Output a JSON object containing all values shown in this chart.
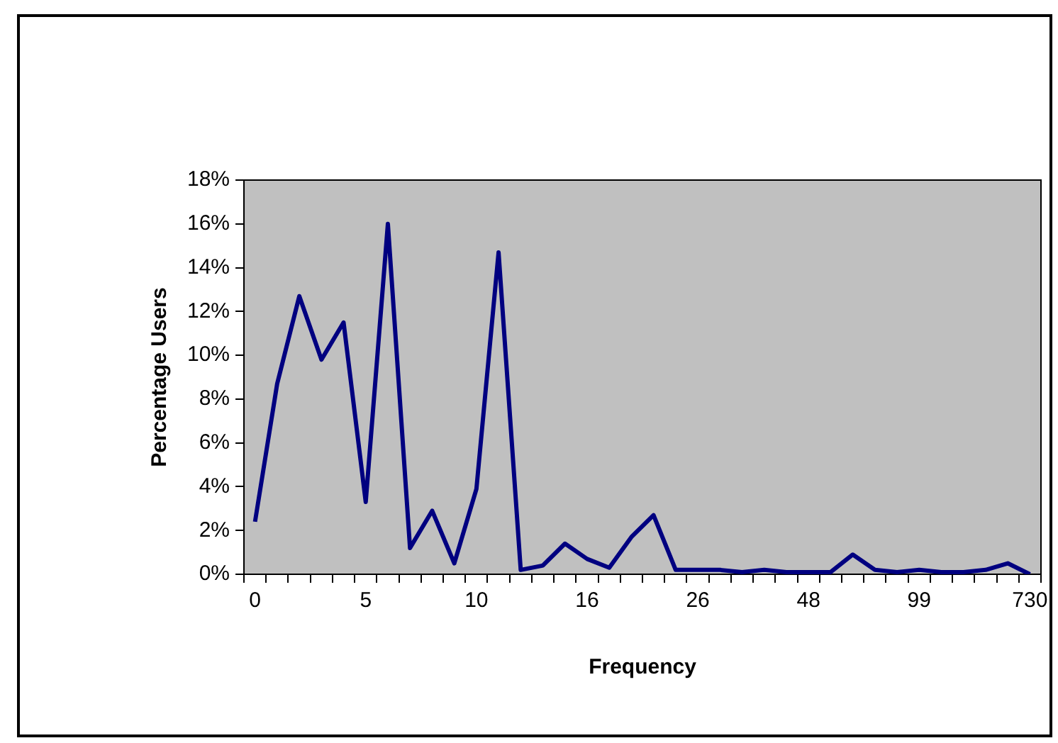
{
  "chart_data": {
    "type": "line",
    "xlabel": "Frequency",
    "ylabel": "Percentage Users",
    "categories": [
      "0",
      null,
      null,
      null,
      null,
      "5",
      null,
      null,
      null,
      null,
      "10",
      null,
      null,
      null,
      null,
      "16",
      null,
      null,
      null,
      null,
      "26",
      null,
      null,
      null,
      null,
      "48",
      null,
      null,
      null,
      null,
      "99",
      null,
      null,
      null,
      null,
      "730"
    ],
    "series": [
      {
        "color": "#000080",
        "values": [
          2.4,
          8.7,
          12.7,
          9.8,
          11.5,
          3.3,
          16.0,
          1.2,
          2.9,
          0.5,
          3.9,
          14.7,
          0.2,
          0.4,
          1.4,
          0.7,
          0.3,
          1.7,
          2.7,
          0.2,
          0.2,
          0.2,
          0.1,
          0.2,
          0.1,
          0.1,
          0.1,
          0.9,
          0.2,
          0.1,
          0.2,
          0.1,
          0.1,
          0.2,
          0.5,
          0.0
        ]
      }
    ],
    "ylim": [
      0,
      18
    ],
    "yticks": [
      {
        "value": 0,
        "label": "0%"
      },
      {
        "value": 2,
        "label": "2%"
      },
      {
        "value": 4,
        "label": "4%"
      },
      {
        "value": 6,
        "label": "6%"
      },
      {
        "value": 8,
        "label": "8%"
      },
      {
        "value": 10,
        "label": "10%"
      },
      {
        "value": 12,
        "label": "12%"
      },
      {
        "value": 14,
        "label": "14%"
      },
      {
        "value": 16,
        "label": "16%"
      },
      {
        "value": 18,
        "label": "18%"
      }
    ],
    "grid": false,
    "legend": false,
    "marker": "none",
    "line_style": "solid"
  }
}
